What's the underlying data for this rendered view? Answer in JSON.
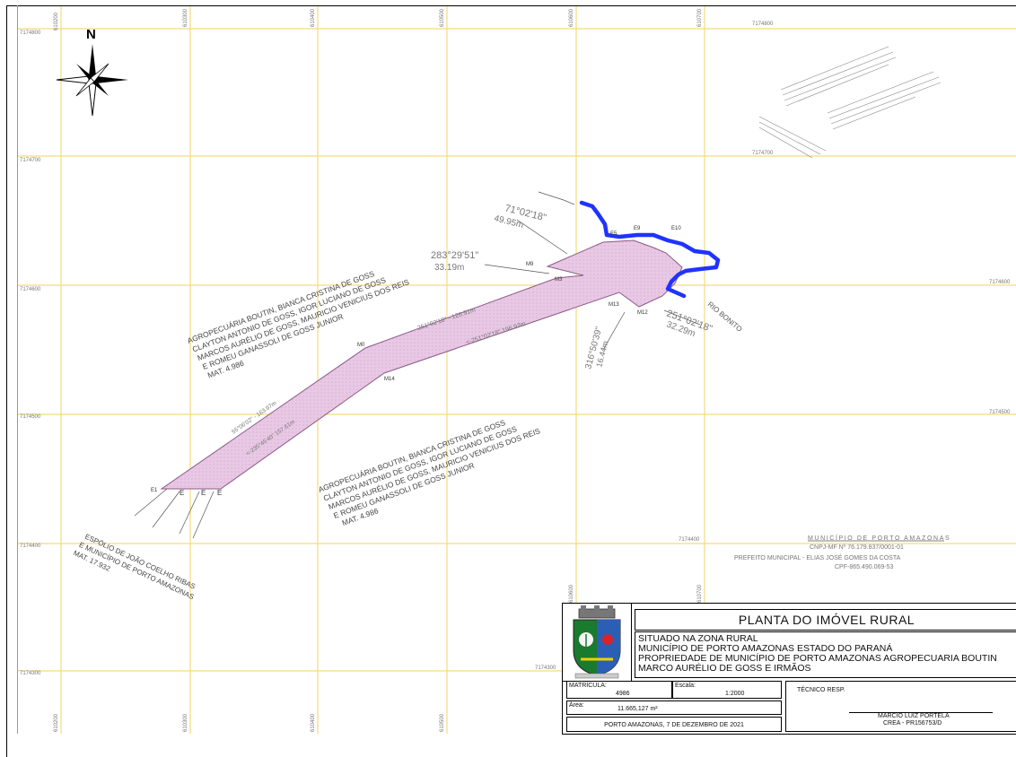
{
  "map": {
    "north_label": "N",
    "grid_northings": {
      "n174800": "7174800",
      "n174700": "7174700",
      "n174600": "7174600",
      "n174500": "7174500",
      "n174400": "7174400",
      "n174300": "7174300"
    },
    "grid_eastings": {
      "e610200": "610200",
      "e610300": "610300",
      "e610400": "610400",
      "e610500": "610500",
      "e610600": "610600",
      "e610700": "610700"
    },
    "owner_north": {
      "line1": "AGROPECUÁRIA BOUTIN, BIANCA CRISTINA DE GOSS",
      "line2": "CLAYTON ANTONIO DE GOSS, IGOR LUCIANO DE GOSS",
      "line3": "MARCOS AURÉLIO DE GOSS, MAURICIO VENICIUS DOS REIS",
      "line4": "E ROMEU GANASSOLI DE GOSS JUNIOR",
      "line5": "MAT. 4.986"
    },
    "owner_south": {
      "line1": "AGROPECUÁRIA BOUTIN, BIANCA CRISTINA DE GOSS",
      "line2": "CLAYTON ANTONIO DE GOSS, IGOR LUCIANO DE GOSS",
      "line3": "MARCOS AURÉLIO DE GOSS, MAURICIO VENICIUS DOS REIS",
      "line4": "E ROMEU GANASSOLI DE GOSS JUNIOR",
      "line5": "MAT. 4.986"
    },
    "owner_southwest": {
      "line1": "ESPÓLIO DE JOÃO COELHO RIBAS",
      "line2": "E MUNICÍPIO DE PORTO AMAZONAS",
      "line3": "MAT. 17.932"
    },
    "river_label": "RIO BONITO",
    "bearings": {
      "b1_angle": "71°02'18\"",
      "b1_dist": "49.95m",
      "b2_angle": "283°29'51\"",
      "b2_dist": "33.19m",
      "b3_angle": "251°02'18\"",
      "b3_dist": "32.29m",
      "b4_angle": "316°50'39\"",
      "b4_dist": "16.44m",
      "b5": "251°02'18\" - 126.91m",
      "b6": "<-251°02'18\"  196.92m",
      "b7": "55°06'02\" - 163.97m",
      "b8": "<-235°45'40\"  157.61m"
    },
    "markers": {
      "m9": "M9",
      "m3": "M3",
      "m13": "M13",
      "m12": "M12",
      "m14": "M14",
      "m0": "M0",
      "e9": "E9",
      "e10": "E10",
      "e1": "E1",
      "e2": "E",
      "e3": "E",
      "e4": "E",
      "e5": "E5"
    },
    "prefeitura": {
      "line1": "MUNICÍPIO DE PORTO AMAZONAS",
      "line2": "CNPJ-MF Nº 76.179.837/0001-01",
      "line3": "PREFEITO MUNICIPAL - ELIAS JOSÉ GOMES DA COSTA",
      "line4": "CPF-865.490.069-53"
    },
    "colors": {
      "grid": "#f3dc7a",
      "parcel_fill": "#e8c8e4",
      "river": "#1f33ff"
    }
  },
  "title_block": {
    "title": "PLANTA DO IMÓVEL RURAL",
    "desc1": "SITUADO NA ZONA RURAL",
    "desc2": "MUNICÍPIO DE PORTO AMAZONAS ESTADO DO PARANÁ",
    "desc3": "PROPRIEDADE DE MUNICÍPIO DE PORTO AMAZONAS AGROPECUARIA BOUTIN",
    "desc4": "MARCO AURÉLIO DE GOSS E IRMÃOS",
    "matricula_label": "MATRÍCULA:",
    "matricula_value": "4986",
    "escala_label": "Escala:",
    "escala_value": "1:2000",
    "area_label": "Área:",
    "area_value": "11.665,127 m²",
    "place_date": "PORTO AMAZONAS, 7 DE DEZEMBRO DE 2021",
    "tecnico_label": "TÉCNICO RESP.",
    "tecnico_name": "MARCIO LUIZ PORTELA",
    "tecnico_crea": "CREA - PR156753/D",
    "emblem_icon": "municipal-coat-of-arms-icon"
  }
}
